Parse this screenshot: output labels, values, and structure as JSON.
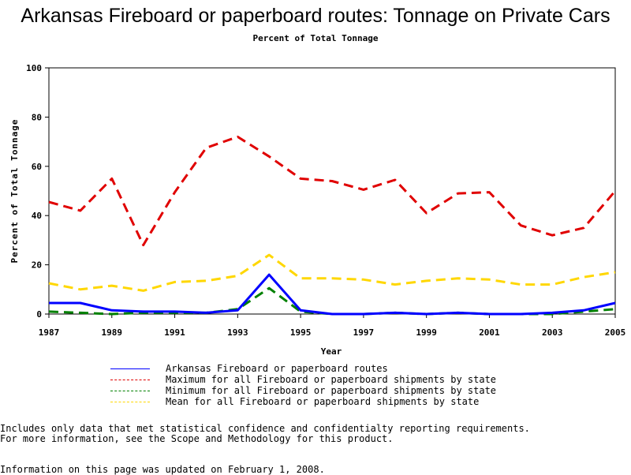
{
  "chart_data": {
    "type": "line",
    "title": "Arkansas Fireboard or paperboard routes: Tonnage on Private Cars",
    "subtitle": "Percent of Total Tonnage",
    "xlabel": "Year",
    "ylabel": "Percent of Total Tonnage",
    "xlim": [
      1987,
      2005
    ],
    "ylim": [
      0,
      100
    ],
    "x_ticks": [
      1987,
      1989,
      1991,
      1993,
      1995,
      1997,
      1999,
      2001,
      2003,
      2005
    ],
    "y_ticks": [
      0,
      20,
      40,
      60,
      80,
      100
    ],
    "x": [
      1987,
      1988,
      1989,
      1990,
      1991,
      1992,
      1993,
      1994,
      1995,
      1996,
      1997,
      1998,
      1999,
      2000,
      2001,
      2002,
      2003,
      2004,
      2005
    ],
    "series": [
      {
        "name": "Arkansas Fireboard or paperboard routes",
        "color": "#0000ff",
        "style": "solid",
        "values": [
          4.5,
          4.5,
          1.5,
          1.0,
          1.0,
          0.5,
          1.5,
          16.0,
          1.5,
          0.0,
          0.0,
          0.5,
          0.0,
          0.5,
          0.0,
          0.0,
          0.5,
          1.5,
          4.5
        ]
      },
      {
        "name": "Maximum for all Fireboard or paperboard shipments by state",
        "color": "#e00000",
        "style": "dashed",
        "values": [
          45.5,
          42.0,
          55.0,
          28.0,
          49.5,
          67.5,
          72.0,
          64.0,
          55.0,
          54.0,
          50.5,
          54.5,
          41.0,
          49.0,
          49.5,
          36.0,
          32.0,
          35.0,
          50.0
        ]
      },
      {
        "name": "Minimum for all Fireboard or paperboard shipments by state",
        "color": "#008000",
        "style": "dashed",
        "values": [
          1.0,
          0.5,
          0.0,
          0.5,
          0.5,
          0.5,
          2.0,
          10.5,
          1.0,
          0.0,
          0.0,
          0.5,
          0.0,
          0.5,
          0.0,
          0.0,
          0.0,
          1.0,
          2.0
        ]
      },
      {
        "name": "Mean for all Fireboard or paperboard shipments by state",
        "color": "#ffd700",
        "style": "dashed",
        "values": [
          12.5,
          10.0,
          11.5,
          9.5,
          13.0,
          13.5,
          15.5,
          24.0,
          14.5,
          14.5,
          14.0,
          12.0,
          13.5,
          14.5,
          14.0,
          12.0,
          12.0,
          15.0,
          17.0
        ]
      }
    ],
    "legend_position": "bottom",
    "grid": false
  },
  "footnotes": {
    "line1": "Includes only data that met statistical confidence and confidentialty reporting requirements.",
    "line2": "For more information, see the Scope and Methodology for this product.",
    "line3": "Information on this page was updated on February 1, 2008."
  }
}
